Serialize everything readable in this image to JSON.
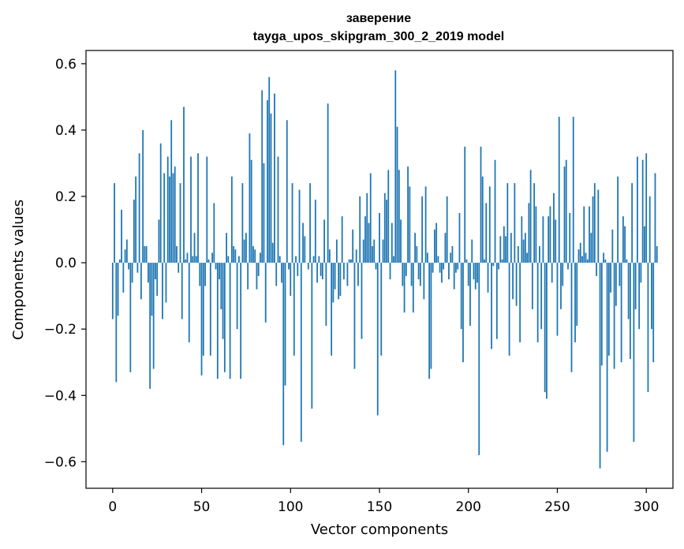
{
  "chart_data": {
    "type": "bar",
    "title": "заверение",
    "subtitle": "tayga_upos_skipgram_300_2_2019 model",
    "xlabel": "Vector components",
    "ylabel": "Components values",
    "xlim": [
      -15,
      315
    ],
    "ylim": [
      -0.68,
      0.64
    ],
    "xticks": [
      0,
      50,
      100,
      150,
      200,
      250,
      300
    ],
    "xtick_labels": [
      "0",
      "50",
      "100",
      "150",
      "200",
      "250",
      "300"
    ],
    "yticks": [
      -0.6,
      -0.4,
      -0.2,
      0.0,
      0.2,
      0.4,
      0.6
    ],
    "ytick_labels": [
      "−0.6",
      "−0.4",
      "−0.2",
      "0.0",
      "0.2",
      "0.4",
      "0.6"
    ],
    "grid": false,
    "bar_color": "#1f77b4",
    "x_start": 0,
    "values": [
      -0.17,
      0.24,
      -0.36,
      -0.16,
      0.01,
      0.16,
      -0.09,
      0.04,
      0.07,
      -0.02,
      -0.33,
      -0.06,
      0.19,
      0.26,
      -0.03,
      0.33,
      -0.11,
      0.4,
      0.05,
      0.05,
      -0.06,
      -0.38,
      -0.16,
      -0.32,
      -0.05,
      -0.1,
      0.13,
      0.36,
      -0.17,
      0.27,
      -0.12,
      0.32,
      0.26,
      0.43,
      0.27,
      0.29,
      0.05,
      -0.03,
      0.24,
      -0.17,
      0.47,
      0.01,
      0.03,
      -0.24,
      0.32,
      0.02,
      0.09,
      0.02,
      0.33,
      -0.07,
      -0.34,
      -0.28,
      -0.07,
      0.32,
      0.01,
      -0.28,
      0.03,
      0.18,
      -0.02,
      -0.35,
      -0.05,
      -0.14,
      -0.23,
      -0.33,
      0.09,
      0.02,
      -0.35,
      0.26,
      0.05,
      0.04,
      -0.2,
      0.02,
      -0.35,
      0.24,
      0.07,
      0.09,
      -0.08,
      0.39,
      0.31,
      0.05,
      0.04,
      -0.08,
      -0.04,
      0.03,
      0.52,
      0.3,
      -0.18,
      0.49,
      0.56,
      0.45,
      0.06,
      0.51,
      -0.07,
      0.32,
      0.02,
      -0.06,
      -0.55,
      -0.37,
      0.43,
      -0.02,
      -0.1,
      0.24,
      -0.28,
      0.02,
      -0.04,
      0.22,
      -0.54,
      0.12,
      0.08,
      0.0,
      -0.02,
      0.24,
      -0.44,
      0.02,
      0.19,
      -0.06,
      0.02,
      -0.04,
      -0.05,
      0.13,
      -0.19,
      0.48,
      0.04,
      -0.28,
      -0.12,
      -0.08,
      0.07,
      -0.11,
      -0.1,
      0.14,
      -0.05,
      0.0,
      -0.07,
      0.01,
      0.01,
      0.1,
      -0.32,
      0.04,
      -0.07,
      0.2,
      -0.23,
      0.07,
      0.14,
      0.21,
      0.12,
      0.27,
      0.05,
      0.07,
      -0.02,
      -0.46,
      0.15,
      -0.28,
      0.07,
      0.21,
      0.19,
      0.28,
      -0.05,
      0.12,
      0.02,
      0.58,
      0.41,
      0.28,
      0.13,
      -0.07,
      -0.15,
      -0.04,
      0.29,
      0.23,
      -0.07,
      -0.15,
      0.09,
      0.05,
      -0.05,
      -0.07,
      0.2,
      -0.11,
      0.23,
      0.03,
      -0.35,
      -0.32,
      -0.03,
      0.1,
      0.12,
      0.02,
      -0.03,
      -0.06,
      -0.02,
      0.09,
      0.2,
      -0.05,
      0.03,
      0.05,
      -0.08,
      -0.03,
      -0.02,
      0.15,
      -0.2,
      -0.3,
      0.35,
      0.01,
      -0.07,
      -0.19,
      0.07,
      -0.05,
      -0.08,
      -0.06,
      -0.58,
      0.35,
      0.26,
      0.01,
      0.18,
      -0.09,
      0.23,
      -0.26,
      -0.01,
      0.31,
      -0.23,
      -0.02,
      0.08,
      0.01,
      0.11,
      0.08,
      0.24,
      -0.28,
      0.09,
      -0.11,
      0.24,
      -0.13,
      0.05,
      -0.24,
      0.14,
      0.07,
      0.09,
      0.03,
      0.18,
      0.28,
      -0.14,
      0.24,
      0.17,
      -0.24,
      0.05,
      -0.2,
      0.14,
      -0.39,
      -0.41,
      0.14,
      0.17,
      -0.06,
      0.21,
      0.13,
      -0.22,
      0.44,
      -0.14,
      -0.07,
      0.29,
      0.31,
      -0.02,
      0.15,
      -0.33,
      0.44,
      -0.24,
      -0.19,
      0.04,
      0.06,
      0.02,
      0.17,
      0.03,
      0.01,
      0.17,
      0.09,
      0.2,
      0.24,
      -0.04,
      0.22,
      -0.62,
      -0.31,
      0.03,
      0.01,
      -0.57,
      -0.28,
      -0.09,
      0.1,
      -0.32,
      -0.13,
      0.26,
      -0.07,
      -0.3,
      0.14,
      0.11,
      0.01,
      -0.17,
      -0.29,
      0.24,
      -0.54,
      -0.14,
      0.32,
      -0.2,
      -0.06,
      0.31,
      0.11,
      0.33,
      -0.39,
      0.2,
      -0.2,
      -0.3,
      0.27,
      0.05
    ]
  }
}
